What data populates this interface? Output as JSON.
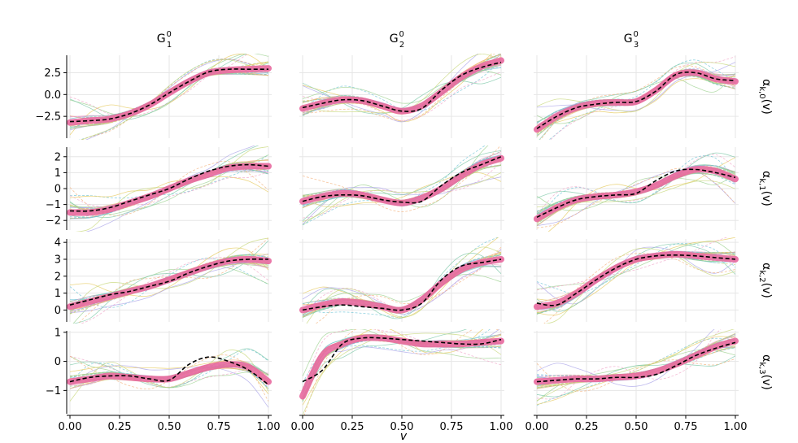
{
  "chart_data": {
    "type": "line",
    "layout": "3 columns x 4 rows facet grid",
    "xlabel": "v",
    "xlim": [
      0,
      1
    ],
    "x_ticks": [
      "0.00",
      "0.25",
      "0.50",
      "0.75",
      "1.00"
    ],
    "grid": true,
    "columns": [
      {
        "base": "G",
        "sup": "0",
        "sub": "1"
      },
      {
        "base": "G",
        "sup": "0",
        "sub": "2"
      },
      {
        "base": "G",
        "sup": "0",
        "sub": "3"
      }
    ],
    "rows": [
      {
        "label_base": "α",
        "label_sub": "k,0",
        "label_tail": "(v)",
        "ylim": [
          -5,
          4.5
        ],
        "y_ticks": [
          -2.5,
          0,
          2.5
        ],
        "y_tick_labels": [
          "−2.5",
          "0.0",
          "2.5"
        ]
      },
      {
        "label_base": "α",
        "label_sub": "k,1",
        "label_tail": "(v)",
        "ylim": [
          -2.6,
          2.6
        ],
        "y_ticks": [
          -2,
          -1,
          0,
          1,
          2
        ],
        "y_tick_labels": [
          "−2",
          "−1",
          "0",
          "1",
          "2"
        ]
      },
      {
        "label_base": "α",
        "label_sub": "k,2",
        "label_tail": "(v)",
        "ylim": [
          -0.7,
          4.2
        ],
        "y_ticks": [
          0,
          1,
          2,
          3,
          4
        ],
        "y_tick_labels": [
          "0",
          "1",
          "2",
          "3",
          "4"
        ]
      },
      {
        "label_base": "α",
        "label_sub": "k,3",
        "label_tail": "(v)",
        "ylim": [
          -1.8,
          1.05
        ],
        "y_ticks": [
          -1,
          0,
          1
        ],
        "y_tick_labels": [
          "−1",
          "0",
          "1"
        ]
      }
    ],
    "x": [
      0.0,
      0.1,
      0.2,
      0.3,
      0.4,
      0.5,
      0.6,
      0.7,
      0.8,
      0.9,
      1.0
    ],
    "panels": [
      [
        {
          "fitted": [
            -3.2,
            -3.0,
            -2.8,
            -2.2,
            -1.2,
            0.2,
            1.5,
            2.5,
            2.8,
            2.9,
            3.0
          ],
          "reference": [
            -3.1,
            -3.0,
            -2.8,
            -2.2,
            -1.2,
            0.2,
            1.5,
            2.6,
            2.9,
            2.9,
            2.9
          ]
        },
        {
          "fitted": [
            -1.5,
            -1.5,
            -1.3,
            -0.9,
            -0.5,
            0.0,
            0.5,
            0.9,
            1.3,
            1.4,
            1.4
          ],
          "reference": [
            -1.4,
            -1.4,
            -1.2,
            -0.8,
            -0.4,
            0.0,
            0.6,
            1.1,
            1.4,
            1.5,
            1.4
          ]
        },
        {
          "fitted": [
            0.2,
            0.5,
            0.8,
            1.1,
            1.4,
            1.8,
            2.2,
            2.6,
            2.9,
            3.0,
            2.9
          ],
          "reference": [
            0.3,
            0.6,
            0.9,
            1.1,
            1.4,
            1.7,
            2.2,
            2.6,
            2.9,
            3.0,
            3.0
          ]
        },
        {
          "fitted": [
            -0.7,
            -0.6,
            -0.5,
            -0.55,
            -0.6,
            -0.6,
            -0.4,
            -0.2,
            -0.1,
            -0.2,
            -0.7
          ],
          "reference": [
            -0.7,
            -0.55,
            -0.5,
            -0.5,
            -0.6,
            -0.65,
            -0.1,
            0.15,
            0.0,
            -0.3,
            -0.8
          ]
        }
      ],
      [
        {
          "fitted": [
            -1.6,
            -1.0,
            -0.6,
            -0.7,
            -1.3,
            -1.9,
            -1.3,
            0.3,
            2.0,
            3.2,
            3.9
          ],
          "reference": [
            -1.5,
            -1.0,
            -0.6,
            -0.7,
            -1.3,
            -1.9,
            -1.6,
            0.5,
            2.2,
            3.1,
            3.7
          ]
        },
        {
          "fitted": [
            -0.8,
            -0.5,
            -0.3,
            -0.4,
            -0.7,
            -0.9,
            -0.6,
            0.0,
            0.8,
            1.5,
            1.9
          ],
          "reference": [
            -0.8,
            -0.5,
            -0.4,
            -0.45,
            -0.7,
            -0.85,
            -0.8,
            0.2,
            1.0,
            1.5,
            2.0
          ]
        },
        {
          "fitted": [
            0.0,
            0.3,
            0.5,
            0.4,
            0.2,
            0.0,
            0.6,
            1.6,
            2.4,
            2.8,
            3.0
          ],
          "reference": [
            0.0,
            0.2,
            0.3,
            0.2,
            0.1,
            0.0,
            0.4,
            1.8,
            2.6,
            2.8,
            3.0
          ]
        },
        {
          "fitted": [
            -1.2,
            0.2,
            0.6,
            0.8,
            0.8,
            0.7,
            0.6,
            0.6,
            0.6,
            0.65,
            0.7
          ],
          "reference": [
            -0.7,
            -0.3,
            0.6,
            0.8,
            0.8,
            0.75,
            0.7,
            0.65,
            0.6,
            0.6,
            0.75
          ]
        }
      ],
      [
        {
          "fitted": [
            -4.0,
            -2.5,
            -1.5,
            -1.0,
            -0.9,
            -0.8,
            0.5,
            2.2,
            2.5,
            1.8,
            1.5
          ],
          "reference": [
            -3.9,
            -2.5,
            -1.5,
            -1.1,
            -0.9,
            -0.8,
            0.4,
            2.3,
            2.5,
            1.8,
            1.6
          ]
        },
        {
          "fitted": [
            -1.9,
            -1.2,
            -0.7,
            -0.5,
            -0.4,
            -0.2,
            0.2,
            0.8,
            1.2,
            1.1,
            0.6
          ],
          "reference": [
            -1.8,
            -1.2,
            -0.7,
            -0.5,
            -0.4,
            -0.3,
            0.5,
            1.1,
            1.2,
            1.0,
            0.7
          ]
        },
        {
          "fitted": [
            0.2,
            0.4,
            1.0,
            1.8,
            2.5,
            3.0,
            3.2,
            3.3,
            3.2,
            3.1,
            3.0
          ],
          "reference": [
            0.4,
            0.3,
            1.0,
            1.8,
            2.5,
            3.0,
            3.2,
            3.25,
            3.2,
            3.1,
            3.0
          ]
        },
        {
          "fitted": [
            -0.7,
            -0.65,
            -0.6,
            -0.6,
            -0.55,
            -0.5,
            -0.35,
            -0.1,
            0.2,
            0.5,
            0.7
          ],
          "reference": [
            -0.7,
            -0.65,
            -0.6,
            -0.6,
            -0.55,
            -0.55,
            -0.45,
            -0.15,
            0.2,
            0.45,
            0.65
          ]
        }
      ]
    ]
  }
}
